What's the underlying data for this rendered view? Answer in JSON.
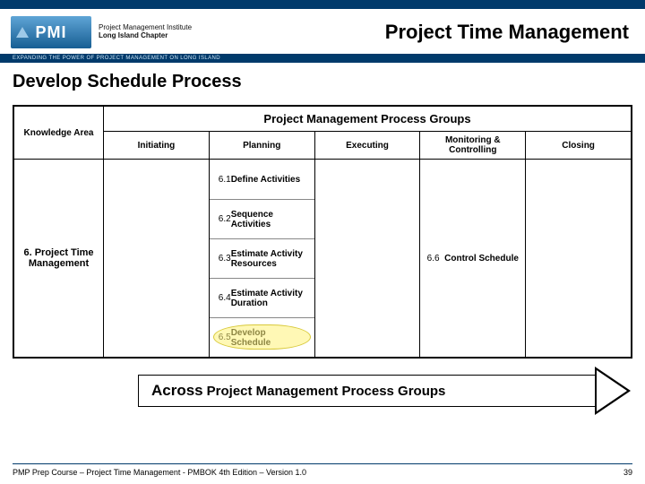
{
  "colors": {
    "brand_dark_blue": "#003a6b",
    "brand_light_blue": "#5fa5d6",
    "highlight_fill": "rgba(255,242,120,0.55)",
    "highlight_border": "#d8c93a",
    "text": "#000000",
    "bg": "#ffffff"
  },
  "logo": {
    "mark_text": "PMI",
    "line1": "Project Management Institute",
    "line2": "Long Island Chapter",
    "tagline": "EXPANDING THE POWER OF PROJECT MANAGEMENT ON LONG ISLAND"
  },
  "page_title": "Project Time Management",
  "section_title": "Develop Schedule Process",
  "table": {
    "knowledge_area_header": "Knowledge Area",
    "process_groups_header": "Project Management Process Groups",
    "columns": [
      "Initiating",
      "Planning",
      "Executing",
      "Monitoring & Controlling",
      "Closing"
    ],
    "knowledge_area_cell": "6.  Project Time Management",
    "planning_items": [
      {
        "num": "6.1",
        "txt": "Define Activities"
      },
      {
        "num": "6.2",
        "txt": "Sequence Activities"
      },
      {
        "num": "6.3",
        "txt": "Estimate Activity Resources"
      },
      {
        "num": "6.4",
        "txt": "Estimate Activity Duration"
      },
      {
        "num": "6.5",
        "txt": "Develop Schedule"
      }
    ],
    "highlighted_planning_index": 4,
    "monitoring_item": {
      "num": "6.6",
      "txt": "Control Schedule"
    }
  },
  "arrow": {
    "big": "Across",
    "rest": "Project Management Process Groups"
  },
  "footer": {
    "left": "PMP Prep Course – Project Time Management - PMBOK 4th Edition – Version 1.0",
    "page_num": "39"
  }
}
